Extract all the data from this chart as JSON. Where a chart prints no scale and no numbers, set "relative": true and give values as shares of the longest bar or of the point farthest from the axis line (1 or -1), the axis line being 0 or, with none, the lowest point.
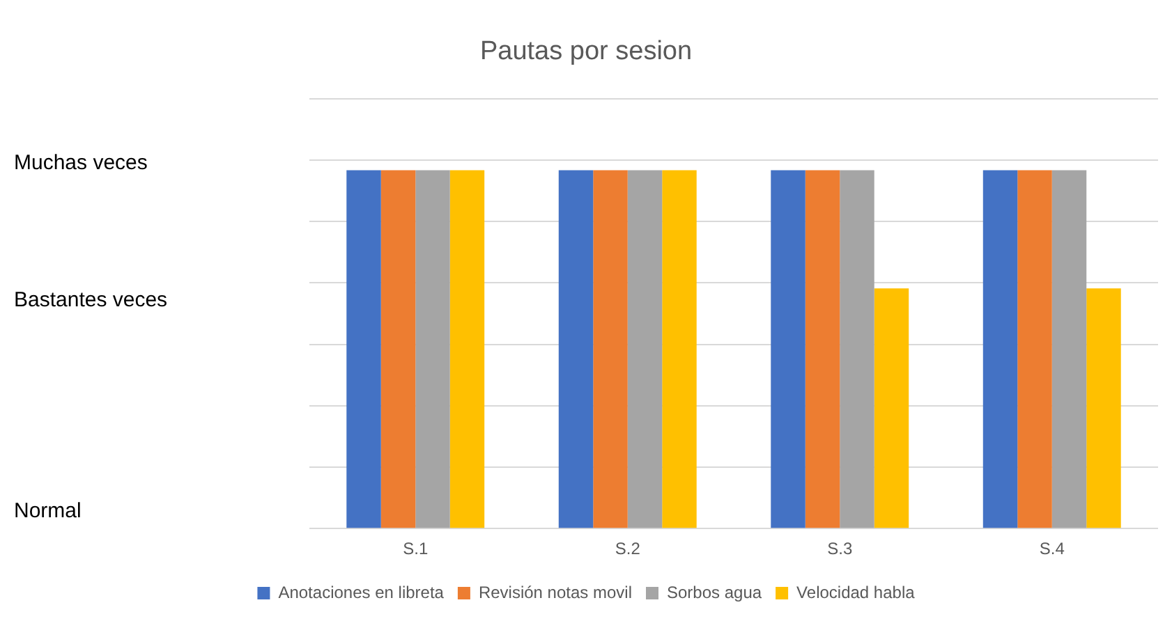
{
  "chart_data": {
    "type": "bar",
    "title": "Pautas por sesion",
    "relative": true,
    "categories": [
      "S.1",
      "S.2",
      "S.3",
      "S.4"
    ],
    "series": [
      {
        "name": "Anotaciones en libreta",
        "color": "#4472c4",
        "values": [
          1,
          1,
          1,
          1
        ]
      },
      {
        "name": "Revisión notas movil",
        "color": "#ed7d31",
        "values": [
          1,
          1,
          1,
          1
        ]
      },
      {
        "name": "Sorbos agua",
        "color": "#a5a5a5",
        "values": [
          1,
          1,
          1,
          1
        ]
      },
      {
        "name": "Velocidad habla",
        "color": "#ffc000",
        "values": [
          1,
          1,
          0.67,
          0.67
        ]
      }
    ],
    "annotations": [
      "Muchas veces",
      "Bastantes veces",
      "Normal"
    ],
    "grid": "y",
    "legend": "bottom"
  }
}
